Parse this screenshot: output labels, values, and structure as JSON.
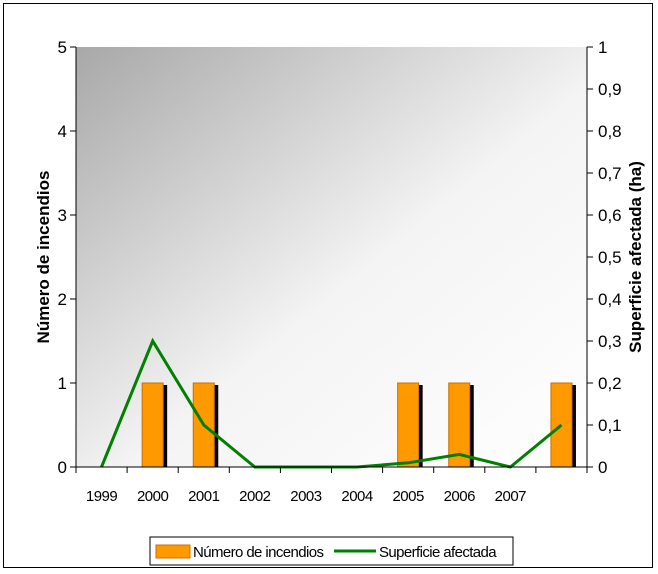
{
  "chart_data": {
    "type": "bar",
    "categories": [
      "1999",
      "2000",
      "2001",
      "2002",
      "2003",
      "2004",
      "2005",
      "2006",
      "2007",
      ""
    ],
    "series": [
      {
        "name": "Número de incendios",
        "type": "bar",
        "axis": "left",
        "values": [
          0,
          1,
          1,
          0,
          0,
          0,
          1,
          1,
          0,
          1
        ]
      },
      {
        "name": "Superficie afectada",
        "type": "line",
        "axis": "right",
        "values": [
          0,
          0.3,
          0.1,
          0,
          0,
          0,
          0.01,
          0.03,
          0,
          0.1
        ]
      }
    ],
    "ylabel": "Número de incendios",
    "y2label": "Superficie afectada (ha)",
    "ylim": [
      0,
      5
    ],
    "y2lim": [
      0,
      1
    ],
    "yticks": [
      "0",
      "1",
      "2",
      "3",
      "4",
      "5"
    ],
    "y2ticks": [
      "0",
      "0,1",
      "0,2",
      "0,3",
      "0,4",
      "0,5",
      "0,6",
      "0,7",
      "0,8",
      "0,9",
      "1"
    ],
    "legend": "bottom",
    "colors": {
      "bar": "#FF9900",
      "bar_edge": "#C87000",
      "bar_shadow": "#000000",
      "line": "#008000"
    }
  }
}
